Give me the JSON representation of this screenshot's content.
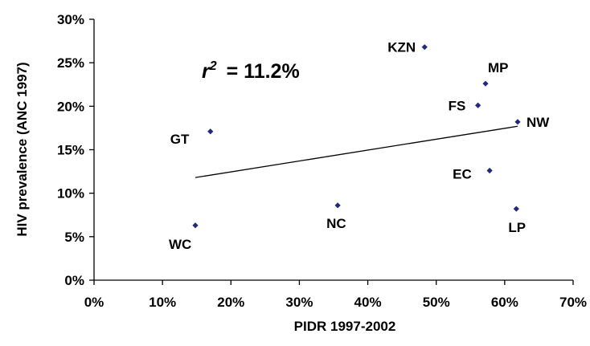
{
  "chart_data": {
    "type": "scatter",
    "xlabel": "PIDR 1997-2002",
    "ylabel": "HIV prevalence (ANC 1997)",
    "xlim": [
      0,
      0.7
    ],
    "ylim": [
      0,
      0.3
    ],
    "x_ticks": [
      0,
      0.1,
      0.2,
      0.3,
      0.4,
      0.5,
      0.6,
      0.7
    ],
    "y_ticks": [
      0,
      0.05,
      0.1,
      0.15,
      0.2,
      0.25,
      0.3
    ],
    "x_tick_labels": [
      "0%",
      "10%",
      "20%",
      "30%",
      "40%",
      "50%",
      "60%",
      "70%"
    ],
    "y_tick_labels": [
      "0%",
      "5%",
      "10%",
      "15%",
      "20%",
      "25%",
      "30%"
    ],
    "grid": false,
    "marker_color": "#1f2a7a",
    "points": [
      {
        "label": "KZN",
        "x": 0.483,
        "y": 0.268
      },
      {
        "label": "MP",
        "x": 0.572,
        "y": 0.226
      },
      {
        "label": "FS",
        "x": 0.561,
        "y": 0.201
      },
      {
        "label": "NW",
        "x": 0.619,
        "y": 0.182
      },
      {
        "label": "GT",
        "x": 0.17,
        "y": 0.171
      },
      {
        "label": "EC",
        "x": 0.578,
        "y": 0.126
      },
      {
        "label": "NC",
        "x": 0.356,
        "y": 0.086
      },
      {
        "label": "LP",
        "x": 0.617,
        "y": 0.082
      },
      {
        "label": "WC",
        "x": 0.148,
        "y": 0.063
      }
    ],
    "trendline": {
      "x": [
        0.148,
        0.619
      ],
      "y": [
        0.118,
        0.177
      ]
    },
    "annotation": {
      "r_symbol": "r",
      "exponent": "2",
      "equals": "= 11.2%"
    }
  }
}
